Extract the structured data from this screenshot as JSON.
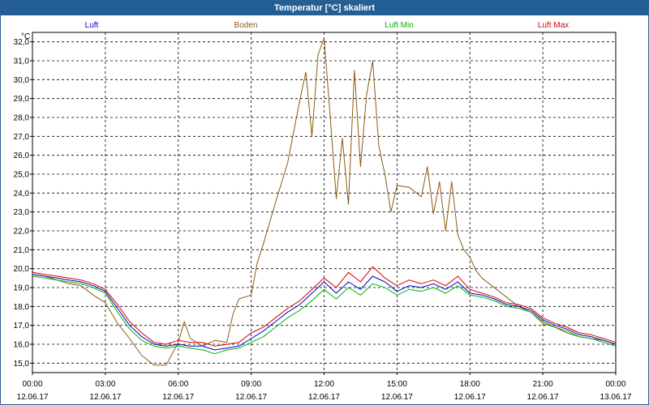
{
  "window": {
    "title": "Temperatur [°C] skaliert"
  },
  "chart_data": {
    "type": "line",
    "title": "Temperatur [°C] skaliert",
    "ylabel": "°C",
    "xlabel": "",
    "ylim": [
      14.5,
      32.5
    ],
    "xlim": [
      0,
      24
    ],
    "grid": true,
    "legend_position": "top",
    "y_ticks": [
      15.0,
      16.0,
      17.0,
      18.0,
      19.0,
      20.0,
      21.0,
      22.0,
      23.0,
      24.0,
      25.0,
      26.0,
      27.0,
      28.0,
      29.0,
      30.0,
      31.0,
      32.0
    ],
    "y_tick_labels": [
      "15,0",
      "16,0",
      "17,0",
      "18,0",
      "19,0",
      "20,0",
      "21,0",
      "22,0",
      "23,0",
      "24,0",
      "25,0",
      "26,0",
      "27,0",
      "28,0",
      "29,0",
      "30,0",
      "31,0",
      "32,0"
    ],
    "x_ticks": [
      {
        "time": "00:00",
        "date": "12.06.17"
      },
      {
        "time": "03:00",
        "date": "12.06.17"
      },
      {
        "time": "06:00",
        "date": "12.06.17"
      },
      {
        "time": "09:00",
        "date": "12.06.17"
      },
      {
        "time": "12:00",
        "date": "12.06.17"
      },
      {
        "time": "15:00",
        "date": "12.06.17"
      },
      {
        "time": "18:00",
        "date": "12.06.17"
      },
      {
        "time": "21:00",
        "date": "12.06.17"
      },
      {
        "time": "00:00",
        "date": "13.06.17"
      }
    ],
    "series": [
      {
        "name": "Luft",
        "color": "#0000c8",
        "x": [
          0,
          0.5,
          1,
          1.5,
          2,
          2.5,
          3,
          3.5,
          4,
          4.5,
          5,
          5.5,
          6,
          6.5,
          7,
          7.5,
          8,
          8.5,
          9,
          9.5,
          10,
          10.5,
          11,
          11.5,
          12,
          12.5,
          13,
          13.5,
          14,
          14.5,
          15,
          15.5,
          16,
          16.5,
          17,
          17.5,
          18,
          18.5,
          19,
          19.5,
          20,
          20.5,
          21,
          21.5,
          22,
          22.5,
          23,
          23.5,
          24
        ],
        "values": [
          19.7,
          19.6,
          19.5,
          19.4,
          19.3,
          19.1,
          18.8,
          17.9,
          17.0,
          16.4,
          16.0,
          15.9,
          16.0,
          15.9,
          15.9,
          15.7,
          15.8,
          15.9,
          16.3,
          16.7,
          17.2,
          17.7,
          18.1,
          18.7,
          19.3,
          18.7,
          19.3,
          18.9,
          19.6,
          19.3,
          18.8,
          19.1,
          19.0,
          19.2,
          18.9,
          19.3,
          18.7,
          18.6,
          18.4,
          18.1,
          18.0,
          17.8,
          17.3,
          17.0,
          16.8,
          16.5,
          16.4,
          16.2,
          16.0
        ]
      },
      {
        "name": "Boden",
        "color": "#8b5a14",
        "x": [
          0,
          0.5,
          1,
          1.5,
          2,
          2.5,
          3,
          3.5,
          4,
          4.5,
          5,
          5.5,
          6,
          6.25,
          6.5,
          7,
          7.5,
          8,
          8.25,
          8.5,
          9,
          9.25,
          9.5,
          10,
          10.5,
          11,
          11.25,
          11.5,
          11.75,
          12,
          12.25,
          12.5,
          12.75,
          13,
          13.25,
          13.5,
          13.75,
          14,
          14.25,
          14.5,
          14.75,
          15,
          15.5,
          16,
          16.25,
          16.5,
          16.75,
          17,
          17.25,
          17.5,
          17.75,
          18,
          18.25,
          18.5,
          19,
          19.5,
          20,
          20.5,
          21,
          21.5,
          22,
          22.5,
          23,
          23.5,
          24
        ],
        "values": [
          19.7,
          19.6,
          19.4,
          19.2,
          19.1,
          18.6,
          18.2,
          17.1,
          16.3,
          15.4,
          14.9,
          14.9,
          16.1,
          17.2,
          16.3,
          15.9,
          16.2,
          16.1,
          17.6,
          18.4,
          18.6,
          20.3,
          21.3,
          23.5,
          25.6,
          28.9,
          30.4,
          27.0,
          31.3,
          32.2,
          28.1,
          23.7,
          26.9,
          23.4,
          30.5,
          25.4,
          29.2,
          31.0,
          26.5,
          25.0,
          23.0,
          24.4,
          24.3,
          23.8,
          25.4,
          22.9,
          24.6,
          22.0,
          24.6,
          21.8,
          21.0,
          20.6,
          19.9,
          19.5,
          19.0,
          18.5,
          18.0,
          17.7,
          17.1,
          16.9,
          16.6,
          16.4,
          16.3,
          16.2,
          16.0
        ]
      },
      {
        "name": "Luft Min",
        "color": "#00b400",
        "x": [
          0,
          0.5,
          1,
          1.5,
          2,
          2.5,
          3,
          3.5,
          4,
          4.5,
          5,
          5.5,
          6,
          6.5,
          7,
          7.5,
          8,
          8.5,
          9,
          9.5,
          10,
          10.5,
          11,
          11.5,
          12,
          12.5,
          13,
          13.5,
          14,
          14.5,
          15,
          15.5,
          16,
          16.5,
          17,
          17.5,
          18,
          18.5,
          19,
          19.5,
          20,
          20.5,
          21,
          21.5,
          22,
          22.5,
          23,
          23.5,
          24
        ],
        "values": [
          19.6,
          19.5,
          19.4,
          19.3,
          19.2,
          19.0,
          18.7,
          17.7,
          16.8,
          16.2,
          15.9,
          15.8,
          15.9,
          15.8,
          15.7,
          15.5,
          15.7,
          15.8,
          16.1,
          16.4,
          16.9,
          17.4,
          17.8,
          18.3,
          18.9,
          18.4,
          19.0,
          18.6,
          19.2,
          19.0,
          18.6,
          18.9,
          18.8,
          19.0,
          18.7,
          19.1,
          18.6,
          18.5,
          18.3,
          18.0,
          17.9,
          17.7,
          17.2,
          16.9,
          16.7,
          16.4,
          16.3,
          16.1,
          15.9
        ]
      },
      {
        "name": "Luft Max",
        "color": "#dc0000",
        "x": [
          0,
          0.5,
          1,
          1.5,
          2,
          2.5,
          3,
          3.5,
          4,
          4.5,
          5,
          5.5,
          6,
          6.5,
          7,
          7.5,
          8,
          8.5,
          9,
          9.5,
          10,
          10.5,
          11,
          11.5,
          12,
          12.5,
          13,
          13.5,
          14,
          14.5,
          15,
          15.5,
          16,
          16.5,
          17,
          17.5,
          18,
          18.5,
          19,
          19.5,
          20,
          20.5,
          21,
          21.5,
          22,
          22.5,
          23,
          23.5,
          24
        ],
        "values": [
          19.8,
          19.7,
          19.6,
          19.5,
          19.4,
          19.2,
          18.9,
          18.1,
          17.2,
          16.6,
          16.1,
          16.0,
          16.2,
          16.1,
          16.1,
          15.9,
          16.0,
          16.1,
          16.6,
          16.9,
          17.4,
          17.9,
          18.3,
          18.9,
          19.5,
          19.0,
          19.8,
          19.3,
          20.1,
          19.5,
          19.1,
          19.4,
          19.2,
          19.4,
          19.1,
          19.6,
          18.9,
          18.7,
          18.5,
          18.2,
          18.1,
          17.9,
          17.4,
          17.1,
          16.9,
          16.6,
          16.5,
          16.3,
          16.1
        ]
      }
    ]
  }
}
